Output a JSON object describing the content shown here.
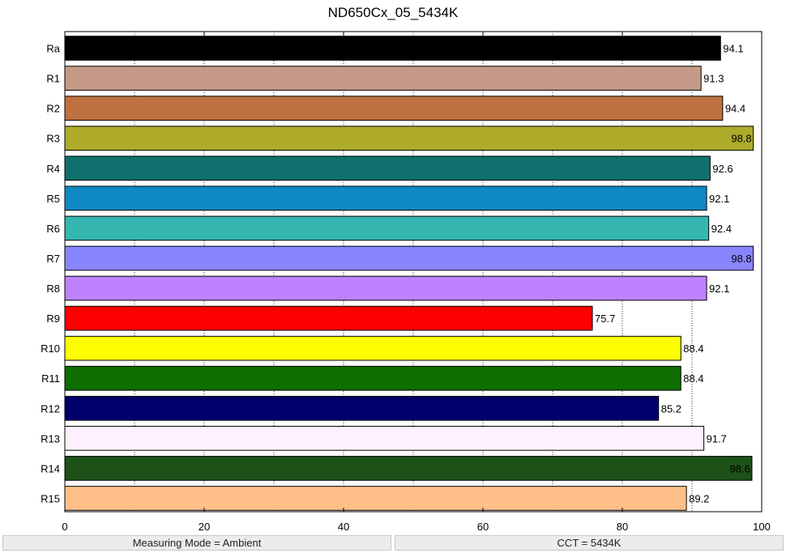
{
  "chart_data": {
    "type": "bar",
    "orientation": "horizontal",
    "title": "ND650Cx_05_5434K",
    "xlabel": "",
    "ylabel": "",
    "xlim": [
      0,
      100
    ],
    "xticks": [
      0,
      20,
      40,
      60,
      80,
      100
    ],
    "grid": "vertical dotted every 10",
    "categories": [
      "Ra",
      "R1",
      "R2",
      "R3",
      "R4",
      "R5",
      "R6",
      "R7",
      "R8",
      "R9",
      "R10",
      "R11",
      "R12",
      "R13",
      "R14",
      "R15"
    ],
    "values": [
      94.1,
      91.3,
      94.4,
      98.8,
      92.6,
      92.1,
      92.4,
      98.8,
      92.1,
      75.7,
      88.4,
      88.4,
      85.2,
      91.7,
      98.6,
      89.2
    ],
    "value_labels": [
      "94.1",
      "91.3",
      "94.4",
      "98.8",
      "92.6",
      "92.1",
      "92.4",
      "98.8",
      "92.1",
      "75.7",
      "88.4",
      "88.4",
      "85.2",
      "91.7",
      "98.6",
      "89.2"
    ],
    "colors": [
      "#000000",
      "#c49a86",
      "#bf7040",
      "#aeaa2a",
      "#0f706e",
      "#0f88c4",
      "#35b6b0",
      "#8886fe",
      "#be82fe",
      "#fe0000",
      "#fefe00",
      "#0e6e00",
      "#00006c",
      "#fef0fe",
      "#1c5218",
      "#fec088"
    ]
  },
  "status": {
    "left": "Measuring Mode = Ambient",
    "right": "CCT = 5434K"
  }
}
